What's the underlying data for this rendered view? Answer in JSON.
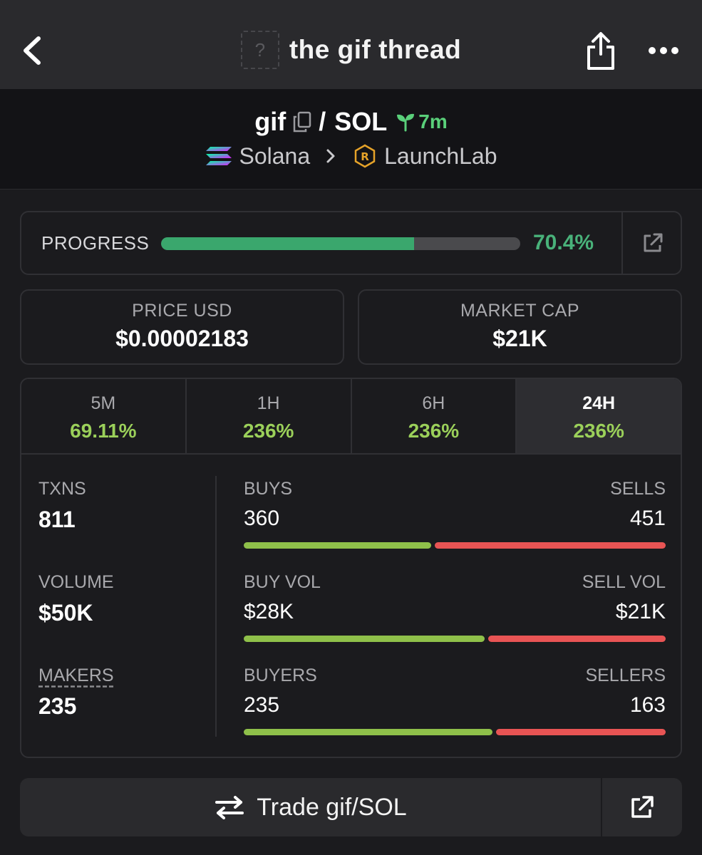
{
  "topbar": {
    "title": "the gif thread",
    "thumb_placeholder": "?"
  },
  "pair": {
    "base": "gif",
    "separator": "/",
    "quote": "SOL",
    "age": "7m",
    "chain": "Solana",
    "dex": "LaunchLab"
  },
  "progress": {
    "label": "PROGRESS",
    "value_text": "70.4%",
    "fraction": 0.704
  },
  "price": {
    "label": "PRICE USD",
    "value": "$0.00002183"
  },
  "market_cap": {
    "label": "MARKET CAP",
    "value": "$21K"
  },
  "timeframes": [
    {
      "label": "5M",
      "value": "69.11%",
      "active": false
    },
    {
      "label": "1H",
      "value": "236%",
      "active": false
    },
    {
      "label": "6H",
      "value": "236%",
      "active": false
    },
    {
      "label": "24H",
      "value": "236%",
      "active": true
    }
  ],
  "stats": {
    "txns": {
      "label": "TXNS",
      "value": "811"
    },
    "volume": {
      "label": "VOLUME",
      "value": "$50K"
    },
    "makers": {
      "label": "MAKERS",
      "value": "235"
    }
  },
  "ratios": [
    {
      "left_label": "BUYS",
      "left_value": "360",
      "right_label": "SELLS",
      "right_value": "451",
      "buy_fraction": 0.444
    },
    {
      "left_label": "BUY VOL",
      "left_value": "$28K",
      "right_label": "SELL VOL",
      "right_value": "$21K",
      "buy_fraction": 0.571
    },
    {
      "left_label": "BUYERS",
      "left_value": "235",
      "right_label": "SELLERS",
      "right_value": "163",
      "buy_fraction": 0.59
    }
  ],
  "trade": {
    "label": "Trade gif/SOL"
  },
  "colors": {
    "accent_green": "#49b27a",
    "change_green": "#9bd05a",
    "buy_bar": "#8fc04a",
    "sell_bar": "#e85454",
    "progress_fill": "#3aa76d"
  },
  "icons": [
    "back-icon",
    "share-icon",
    "more-icon",
    "copy-icon",
    "sprout-icon",
    "solana-icon",
    "chevron-right-icon",
    "launchlab-icon",
    "external-link-icon",
    "swap-icon"
  ]
}
